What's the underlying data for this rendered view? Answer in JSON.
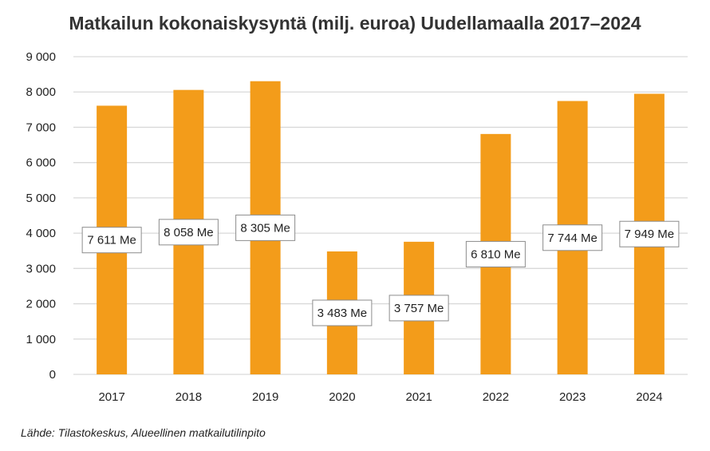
{
  "chart_data": {
    "type": "bar",
    "title": "Matkailun kokonaiskysyntä (milj. euroa) Uudellamaalla 2017–2024",
    "categories": [
      "2017",
      "2018",
      "2019",
      "2020",
      "2021",
      "2022",
      "2023",
      "2024"
    ],
    "values": [
      7611,
      8058,
      8305,
      3483,
      3757,
      6810,
      7744,
      7949
    ],
    "data_labels": [
      "7 611 Me",
      "8 058 Me",
      "8 305 Me",
      "3 483 Me",
      "3 757 Me",
      "6 810 Me",
      "7 744 Me",
      "7 949 Me"
    ],
    "ylim": [
      0,
      9000
    ],
    "yticks": [
      0,
      1000,
      2000,
      3000,
      4000,
      5000,
      6000,
      7000,
      8000,
      9000
    ],
    "ytick_labels": [
      "0",
      "1 000",
      "2 000",
      "3 000",
      "4 000",
      "5 000",
      "6 000",
      "7 000",
      "8 000",
      "9 000"
    ],
    "grid": true,
    "bar_color": "#F39C1A",
    "grid_color": "#D9D9D9"
  },
  "source": "Lähde: Tilastokeskus, Alueellinen matkailutilinpito"
}
